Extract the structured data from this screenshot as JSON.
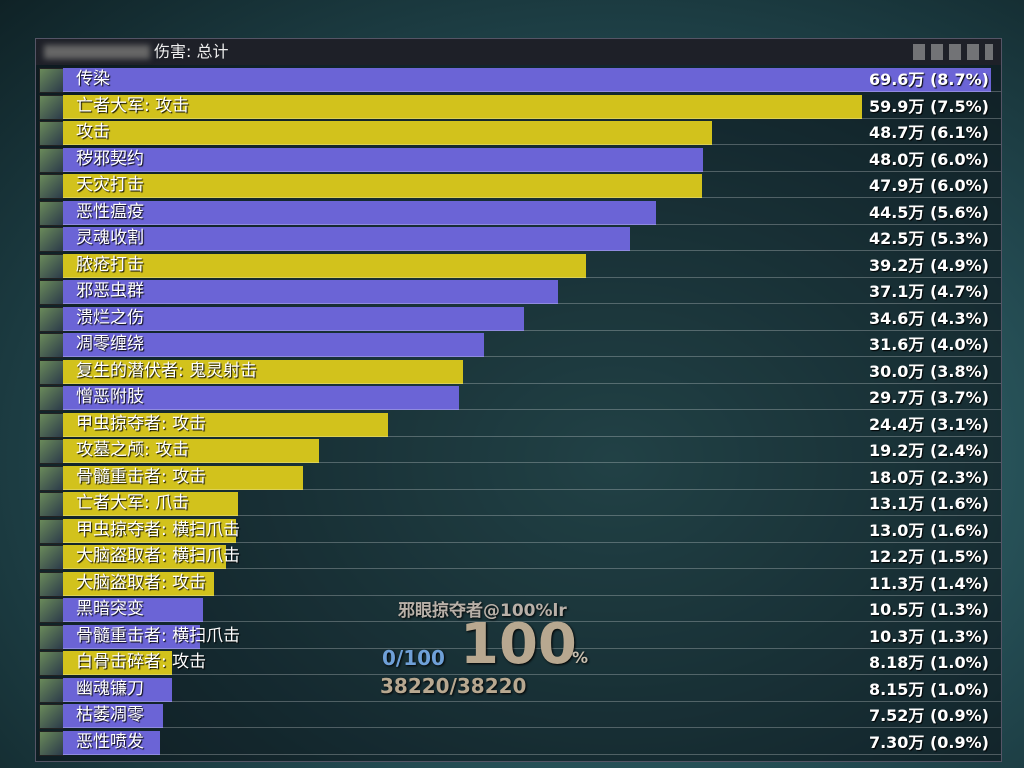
{
  "window": {
    "title": "伤害: 总计"
  },
  "rows": [
    {
      "name": "传染",
      "value": 69.6,
      "label": "69.6万 (8.7%)",
      "color": "#6b64d6"
    },
    {
      "name": "亡者大军: 攻击",
      "value": 59.9,
      "label": "59.9万 (7.5%)",
      "color": "#d2c21c"
    },
    {
      "name": "攻击",
      "value": 48.7,
      "label": "48.7万 (6.1%)",
      "color": "#d2c21c"
    },
    {
      "name": "秽邪契约",
      "value": 48,
      "label": "48.0万 (6.0%)",
      "color": "#6b64d6"
    },
    {
      "name": "天灾打击",
      "value": 47.9,
      "label": "47.9万 (6.0%)",
      "color": "#d2c21c"
    },
    {
      "name": "恶性瘟疫",
      "value": 44.5,
      "label": "44.5万 (5.6%)",
      "color": "#6b64d6"
    },
    {
      "name": "灵魂收割",
      "value": 42.5,
      "label": "42.5万 (5.3%)",
      "color": "#6b64d6"
    },
    {
      "name": "脓疮打击",
      "value": 39.2,
      "label": "39.2万 (4.9%)",
      "color": "#d2c21c"
    },
    {
      "name": "邪恶虫群",
      "value": 37.1,
      "label": "37.1万 (4.7%)",
      "color": "#6b64d6"
    },
    {
      "name": "溃烂之伤",
      "value": 34.6,
      "label": "34.6万 (4.3%)",
      "color": "#6b64d6"
    },
    {
      "name": "凋零缠绕",
      "value": 31.6,
      "label": "31.6万 (4.0%)",
      "color": "#6b64d6"
    },
    {
      "name": "复生的潜伏者: 鬼灵射击",
      "value": 30,
      "label": "30.0万 (3.8%)",
      "color": "#d2c21c"
    },
    {
      "name": "憎恶附肢",
      "value": 29.7,
      "label": "29.7万 (3.7%)",
      "color": "#6b64d6"
    },
    {
      "name": "甲虫掠夺者: 攻击",
      "value": 24.4,
      "label": "24.4万 (3.1%)",
      "color": "#d2c21c"
    },
    {
      "name": "攻墓之颅: 攻击",
      "value": 19.2,
      "label": "19.2万 (2.4%)",
      "color": "#d2c21c"
    },
    {
      "name": "骨髓重击者: 攻击",
      "value": 18,
      "label": "18.0万 (2.3%)",
      "color": "#d2c21c"
    },
    {
      "name": "亡者大军: 爪击",
      "value": 13.1,
      "label": "13.1万 (1.6%)",
      "color": "#d2c21c"
    },
    {
      "name": "甲虫掠夺者: 横扫爪击",
      "value": 13,
      "label": "13.0万 (1.6%)",
      "color": "#d2c21c"
    },
    {
      "name": "大脑盗取者: 横扫爪击",
      "value": 12.2,
      "label": "12.2万 (1.5%)",
      "color": "#d2c21c"
    },
    {
      "name": "大脑盗取者: 攻击",
      "value": 11.3,
      "label": "11.3万 (1.4%)",
      "color": "#d2c21c"
    },
    {
      "name": "黑暗突变",
      "value": 10.5,
      "label": "10.5万 (1.3%)",
      "color": "#6b64d6"
    },
    {
      "name": "骨髓重击者: 横扫爪击",
      "value": 10.3,
      "label": "10.3万 (1.3%)",
      "color": "#6b64d6"
    },
    {
      "name": "白骨击碎者: 攻击",
      "value": 8.18,
      "label": "8.18万 (1.0%)",
      "color": "#d2c21c"
    },
    {
      "name": "幽魂镰刀",
      "value": 8.15,
      "label": "8.15万 (1.0%)",
      "color": "#6b64d6"
    },
    {
      "name": "枯萎凋零",
      "value": 7.52,
      "label": "7.52万 (0.9%)",
      "color": "#6b64d6"
    },
    {
      "name": "恶性喷发",
      "value": 7.3,
      "label": "7.30万 (0.9%)",
      "color": "#6b64d6"
    }
  ],
  "hud": {
    "target": "邪眼掠夺者@100%lr",
    "power": "0/100",
    "percent": "100",
    "percent_sign": "%",
    "health": "38220/38220"
  }
}
